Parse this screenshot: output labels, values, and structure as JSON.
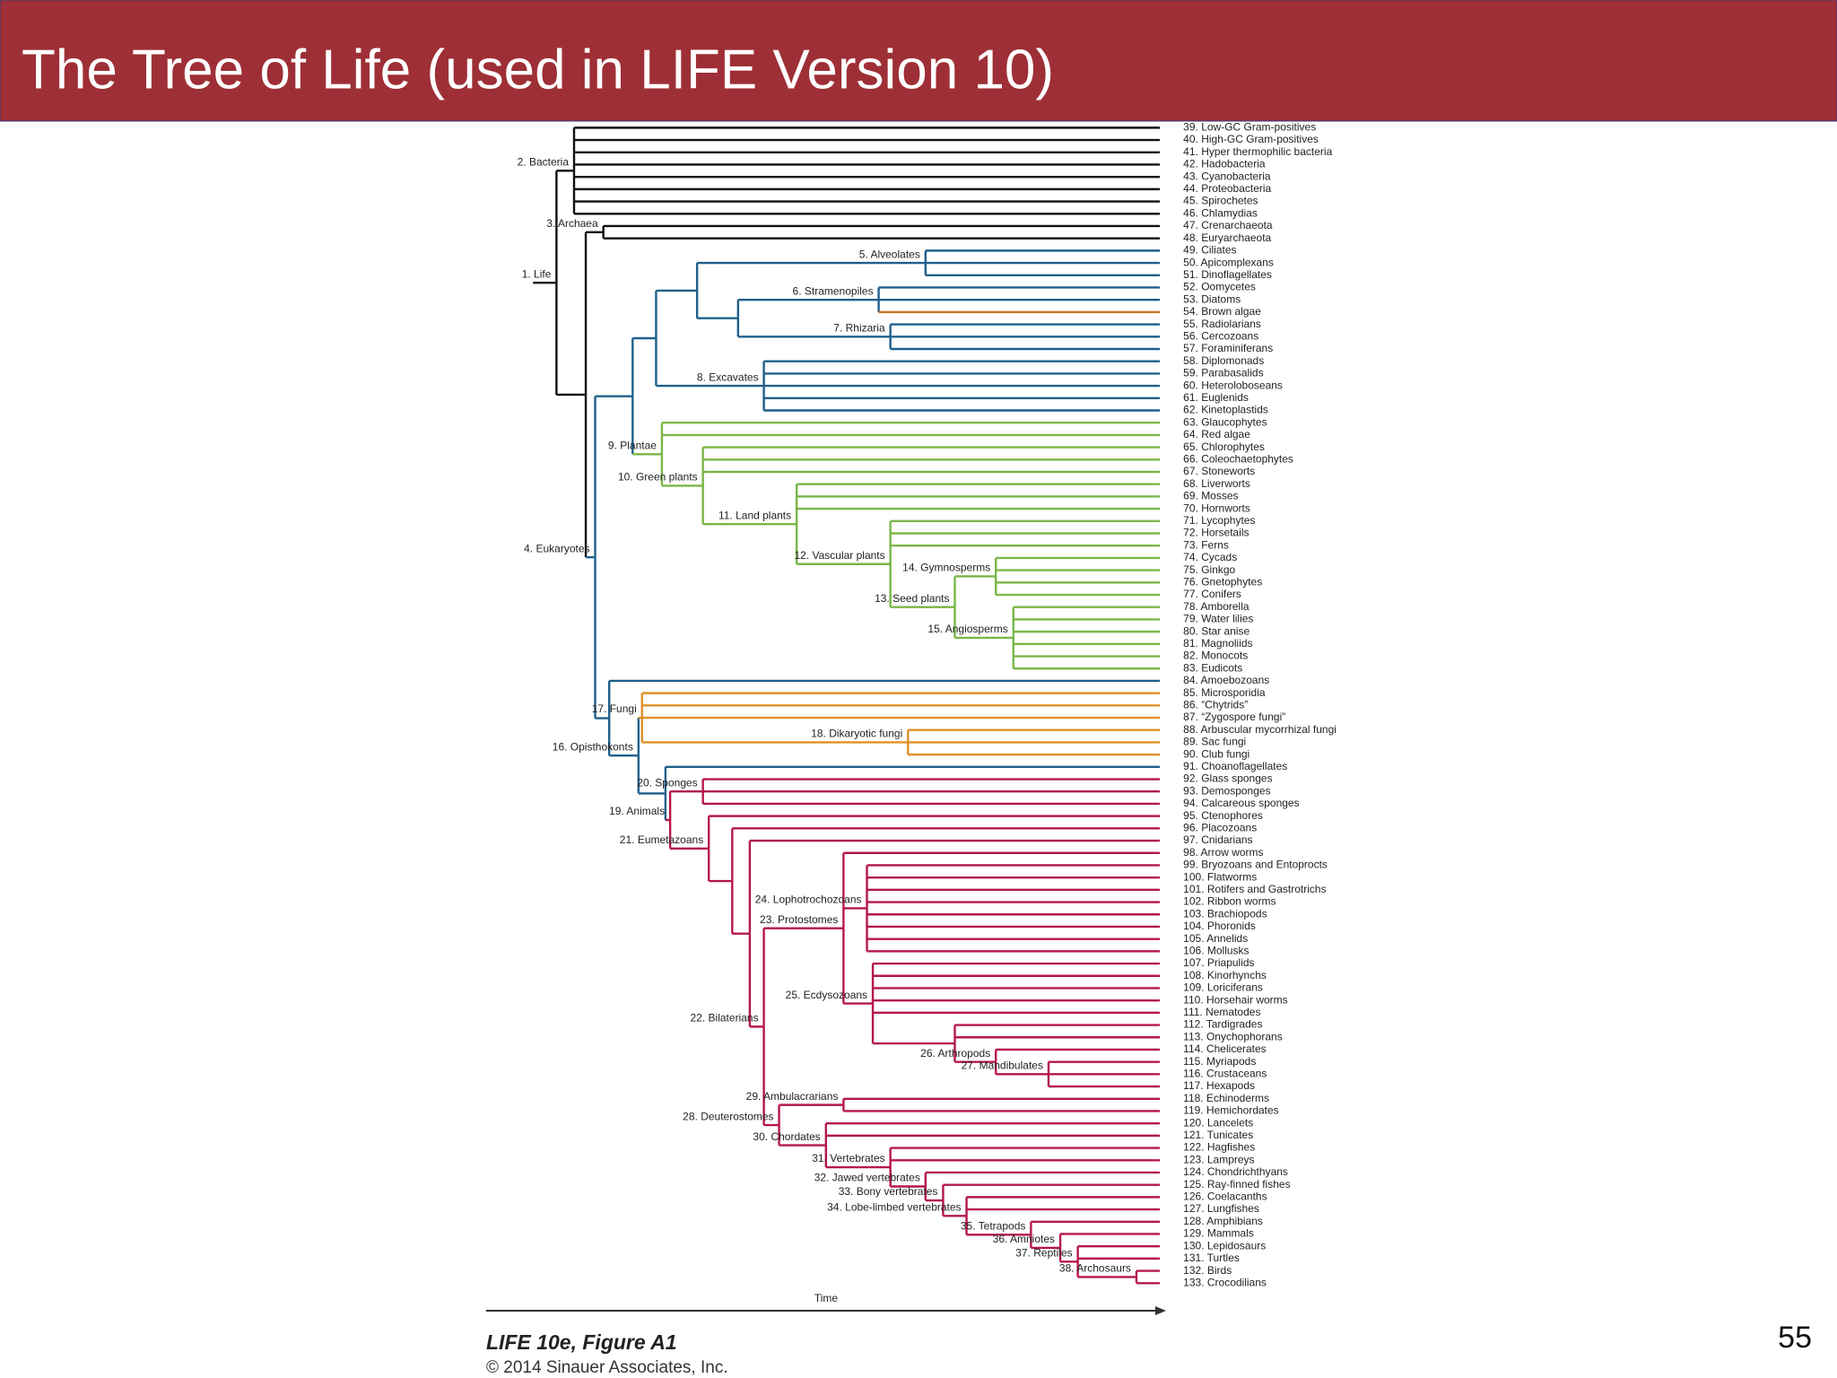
{
  "header": {
    "title": "The Tree of Life (used in LIFE Version 10)"
  },
  "tree": {
    "clades": [
      "1. Life",
      "2. Bacteria",
      "3. Archaea",
      "4. Eukaryotes",
      "5. Alveolates",
      "6. Stramenopiles",
      "7. Rhizaria",
      "8. Excavates",
      "9. Plantae",
      "10. Green plants",
      "11. Land plants",
      "12. Vascular plants",
      "13. Seed plants",
      "14. Gymnosperms",
      "15. Angiosperms",
      "16. Opisthokonts",
      "17. Fungi",
      "18. Dikaryotic fungi",
      "19. Animals",
      "20. Sponges",
      "21. Eumetazoans",
      "22. Bilaterians",
      "23. Protostomes",
      "24. Lophotrochozoans",
      "25. Ecdysozoans",
      "26. Arthropods",
      "27. Mandibulates",
      "28. Deuterostomes",
      "29. Ambulacrarians",
      "30. Chordates",
      "31. Vertebrates",
      "32. Jawed vertebrates",
      "33. Bony vertebrates",
      "34. Lobe-limbed vertebrates",
      "35. Tetrapods",
      "36. Amniotes",
      "37. Reptiles",
      "38. Archosaurs"
    ],
    "leaves": [
      {
        "label": "39. Low-GC Gram-positives",
        "color": "#111111"
      },
      {
        "label": "40. High-GC Gram-positives",
        "color": "#111111"
      },
      {
        "label": "41. Hyper thermophilic bacteria",
        "color": "#111111"
      },
      {
        "label": "42. Hadobacteria",
        "color": "#111111"
      },
      {
        "label": "43. Cyanobacteria",
        "color": "#111111"
      },
      {
        "label": "44. Proteobacteria",
        "color": "#111111"
      },
      {
        "label": "45. Spirochetes",
        "color": "#111111"
      },
      {
        "label": "46. Chlamydias",
        "color": "#111111"
      },
      {
        "label": "47. Crenarchaeota",
        "color": "#111111"
      },
      {
        "label": "48. Euryarchaeota",
        "color": "#111111"
      },
      {
        "label": "49. Ciliates",
        "color": "#1f5f8b"
      },
      {
        "label": "50. Apicomplexans",
        "color": "#1f5f8b"
      },
      {
        "label": "51. Dinoflagellates",
        "color": "#1f5f8b"
      },
      {
        "label": "52. Oomycetes",
        "color": "#1f5f8b"
      },
      {
        "label": "53. Diatoms",
        "color": "#1f5f8b"
      },
      {
        "label": "54. Brown algae",
        "color": "#c8782e"
      },
      {
        "label": "55. Radiolarians",
        "color": "#1f5f8b"
      },
      {
        "label": "56. Cercozoans",
        "color": "#1f5f8b"
      },
      {
        "label": "57. Foraminiferans",
        "color": "#1f5f8b"
      },
      {
        "label": "58. Diplomonads",
        "color": "#1f5f8b"
      },
      {
        "label": "59. Parabasalids",
        "color": "#1f5f8b"
      },
      {
        "label": "60. Heteroloboseans",
        "color": "#1f5f8b"
      },
      {
        "label": "61. Euglenids",
        "color": "#1f5f8b"
      },
      {
        "label": "62. Kinetoplastids",
        "color": "#1f5f8b"
      },
      {
        "label": "63. Glaucophytes",
        "color": "#7ab648"
      },
      {
        "label": "64. Red algae",
        "color": "#7ab648"
      },
      {
        "label": "65. Chlorophytes",
        "color": "#7ab648"
      },
      {
        "label": "66. Coleochaetophytes",
        "color": "#7ab648"
      },
      {
        "label": "67. Stoneworts",
        "color": "#7ab648"
      },
      {
        "label": "68. Liverworts",
        "color": "#7ab648"
      },
      {
        "label": "69. Mosses",
        "color": "#7ab648"
      },
      {
        "label": "70. Hornworts",
        "color": "#7ab648"
      },
      {
        "label": "71. Lycophytes",
        "color": "#7ab648"
      },
      {
        "label": "72. Horsetails",
        "color": "#7ab648"
      },
      {
        "label": "73. Ferns",
        "color": "#7ab648"
      },
      {
        "label": "74. Cycads",
        "color": "#7ab648"
      },
      {
        "label": "75. Ginkgo",
        "color": "#7ab648"
      },
      {
        "label": "76. Gnetophytes",
        "color": "#7ab648"
      },
      {
        "label": "77. Conifers",
        "color": "#7ab648"
      },
      {
        "label": "78. Amborella",
        "color": "#7ab648"
      },
      {
        "label": "79. Water lilies",
        "color": "#7ab648"
      },
      {
        "label": "80. Star anise",
        "color": "#7ab648"
      },
      {
        "label": "81. Magnoliids",
        "color": "#7ab648"
      },
      {
        "label": "82. Monocots",
        "color": "#7ab648"
      },
      {
        "label": "83. Eudicots",
        "color": "#7ab648"
      },
      {
        "label": "84. Amoebozoans",
        "color": "#1f5f8b"
      },
      {
        "label": "85. Microsporidia",
        "color": "#e0902a"
      },
      {
        "label": "86. “Chytrids”",
        "color": "#e0902a"
      },
      {
        "label": "87. “Zygospore fungi”",
        "color": "#e0902a"
      },
      {
        "label": "88. Arbuscular mycorrhizal fungi",
        "color": "#e0902a"
      },
      {
        "label": "89. Sac fungi",
        "color": "#e0902a"
      },
      {
        "label": "90. Club fungi",
        "color": "#e0902a"
      },
      {
        "label": "91. Choanoflagellates",
        "color": "#1f5f8b"
      },
      {
        "label": "92. Glass sponges",
        "color": "#b5174b"
      },
      {
        "label": "93. Demosponges",
        "color": "#b5174b"
      },
      {
        "label": "94. Calcareous sponges",
        "color": "#b5174b"
      },
      {
        "label": "95. Ctenophores",
        "color": "#b5174b"
      },
      {
        "label": "96. Placozoans",
        "color": "#b5174b"
      },
      {
        "label": "97. Cnidarians",
        "color": "#b5174b"
      },
      {
        "label": "98. Arrow worms",
        "color": "#b5174b"
      },
      {
        "label": "99. Bryozoans and Entoprocts",
        "color": "#b5174b"
      },
      {
        "label": "100. Flatworms",
        "color": "#b5174b"
      },
      {
        "label": "101. Rotifers and Gastrotrichs",
        "color": "#b5174b"
      },
      {
        "label": "102. Ribbon worms",
        "color": "#b5174b"
      },
      {
        "label": "103. Brachiopods",
        "color": "#b5174b"
      },
      {
        "label": "104. Phoronids",
        "color": "#b5174b"
      },
      {
        "label": "105. Annelids",
        "color": "#b5174b"
      },
      {
        "label": "106. Mollusks",
        "color": "#b5174b"
      },
      {
        "label": "107. Priapulids",
        "color": "#b5174b"
      },
      {
        "label": "108. Kinorhynchs",
        "color": "#b5174b"
      },
      {
        "label": "109. Loriciferans",
        "color": "#b5174b"
      },
      {
        "label": "110. Horsehair worms",
        "color": "#b5174b"
      },
      {
        "label": "111. Nematodes",
        "color": "#b5174b"
      },
      {
        "label": "112. Tardigrades",
        "color": "#b5174b"
      },
      {
        "label": "113. Onychophorans",
        "color": "#b5174b"
      },
      {
        "label": "114. Chelicerates",
        "color": "#b5174b"
      },
      {
        "label": "115. Myriapods",
        "color": "#b5174b"
      },
      {
        "label": "116. Crustaceans",
        "color": "#b5174b"
      },
      {
        "label": "117. Hexapods",
        "color": "#b5174b"
      },
      {
        "label": "118. Echinoderms",
        "color": "#b5174b"
      },
      {
        "label": "119. Hemichordates",
        "color": "#b5174b"
      },
      {
        "label": "120. Lancelets",
        "color": "#b5174b"
      },
      {
        "label": "121. Tunicates",
        "color": "#b5174b"
      },
      {
        "label": "122. Hagfishes",
        "color": "#b5174b"
      },
      {
        "label": "123. Lampreys",
        "color": "#b5174b"
      },
      {
        "label": "124. Chondrichthyans",
        "color": "#b5174b"
      },
      {
        "label": "125. Ray-finned fishes",
        "color": "#b5174b"
      },
      {
        "label": "126. Coelacanths",
        "color": "#b5174b"
      },
      {
        "label": "127. Lungfishes",
        "color": "#b5174b"
      },
      {
        "label": "128. Amphibians",
        "color": "#b5174b"
      },
      {
        "label": "129. Mammals",
        "color": "#b5174b"
      },
      {
        "label": "130. Lepidosaurs",
        "color": "#b5174b"
      },
      {
        "label": "131. Turtles",
        "color": "#b5174b"
      },
      {
        "label": "132. Birds",
        "color": "#b5174b"
      },
      {
        "label": "133. Crocodilians",
        "color": "#b5174b"
      }
    ],
    "axis_label": "Time"
  },
  "footer": {
    "figure": "LIFE 10e, Figure A1",
    "copyright": "© 2014 Sinauer Associates, Inc.",
    "page_number": "55"
  }
}
